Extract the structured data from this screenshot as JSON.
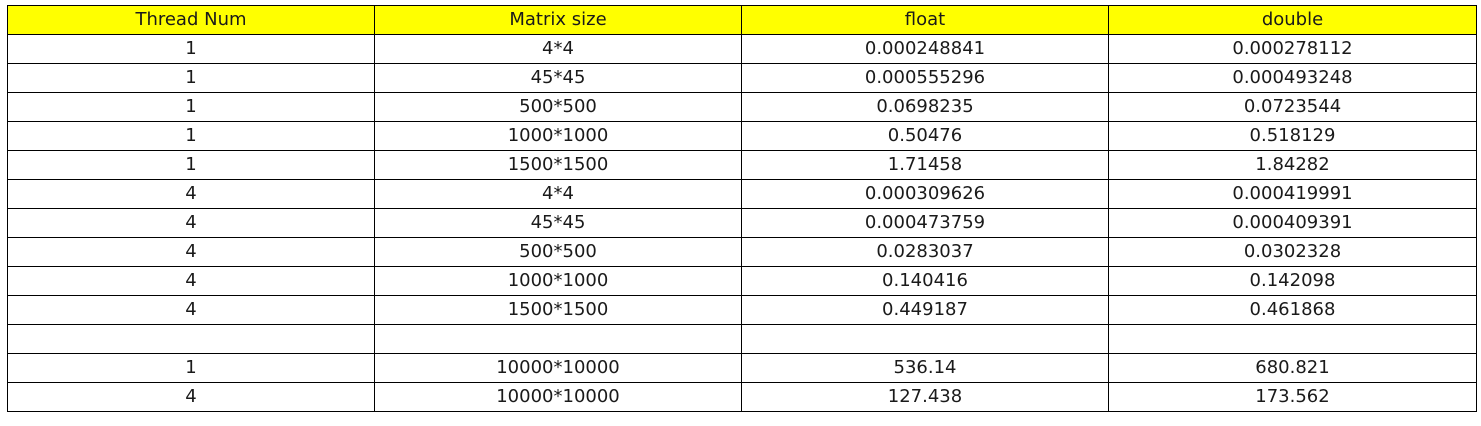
{
  "header_fill": "#ffff00",
  "table": {
    "headers": [
      "Thread Num",
      "Matrix size",
      "float",
      "double"
    ],
    "rows": [
      [
        "1",
        "4*4",
        "0.000248841",
        "0.000278112"
      ],
      [
        "1",
        "45*45",
        "0.000555296",
        "0.000493248"
      ],
      [
        "1",
        "500*500",
        "0.0698235",
        "0.0723544"
      ],
      [
        "1",
        "1000*1000",
        "0.50476",
        "0.518129"
      ],
      [
        "1",
        "1500*1500",
        "1.71458",
        "1.84282"
      ],
      [
        "4",
        "4*4",
        "0.000309626",
        "0.000419991"
      ],
      [
        "4",
        "45*45",
        "0.000473759",
        "0.000409391"
      ],
      [
        "4",
        "500*500",
        "0.0283037",
        "0.0302328"
      ],
      [
        "4",
        "1000*1000",
        "0.140416",
        "0.142098"
      ],
      [
        "4",
        "1500*1500",
        "0.449187",
        "0.461868"
      ],
      [
        "",
        "",
        "",
        ""
      ],
      [
        "1",
        "10000*10000",
        "536.14",
        "680.821"
      ],
      [
        "4",
        "10000*10000",
        "127.438",
        "173.562"
      ]
    ]
  }
}
